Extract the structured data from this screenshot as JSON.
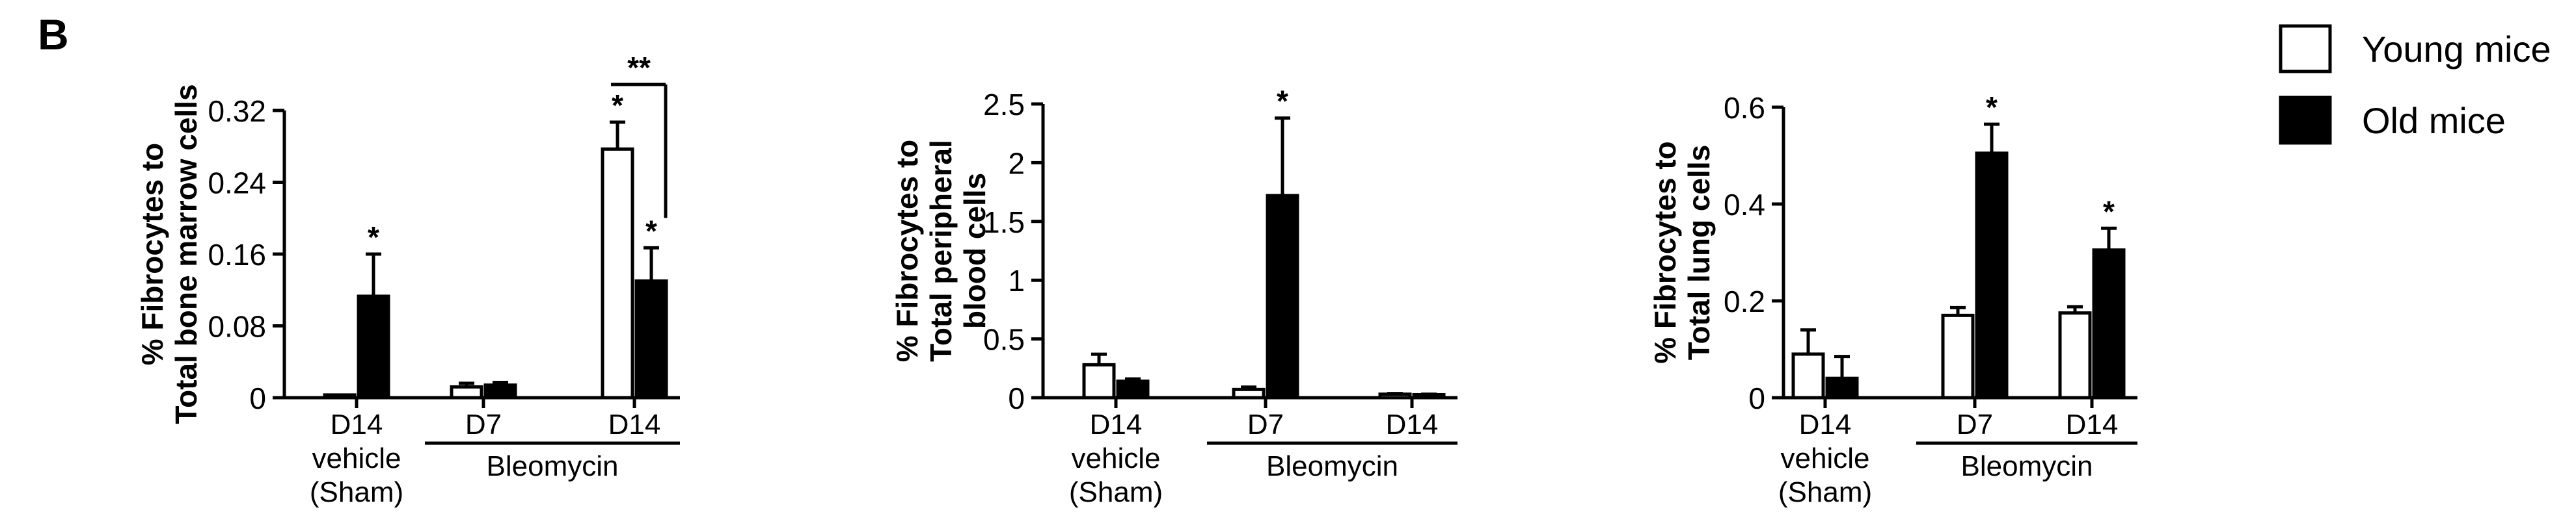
{
  "panel_label": "B",
  "legend": {
    "items": [
      {
        "label": "Young mice",
        "fill": "#ffffff"
      },
      {
        "label": "Old mice",
        "fill": "#000000"
      }
    ]
  },
  "colors": {
    "young": "#ffffff",
    "old": "#000000",
    "stroke": "#000000"
  },
  "chart_data": [
    {
      "type": "bar",
      "ylabel_lines": [
        "% Fibrocytes to",
        "Total bone marrow cells"
      ],
      "ylim": [
        0,
        0.32
      ],
      "yticks": [
        "0",
        "0.08",
        "0.16",
        "0.24",
        "0.32"
      ],
      "groups": [
        {
          "label_lines": [
            "D14",
            "vehicle",
            "(Sham)"
          ],
          "young": 0.003,
          "young_err": 0.0,
          "old": 0.113,
          "old_err": 0.047,
          "young_sig": "",
          "old_sig": "*"
        },
        {
          "label_lines": [
            "D7"
          ],
          "young": 0.012,
          "young_err": 0.004,
          "old": 0.014,
          "old_err": 0.003,
          "young_sig": "",
          "old_sig": ""
        },
        {
          "label_lines": [
            "D14"
          ],
          "young": 0.277,
          "young_err": 0.03,
          "old": 0.13,
          "old_err": 0.037,
          "young_sig": "*",
          "old_sig": "*"
        }
      ],
      "treatment_label": "Bleomycin",
      "bracket": {
        "label": "**"
      }
    },
    {
      "type": "bar",
      "ylabel_lines": [
        "% Fibrocytes to",
        "Total peripheral",
        "blood cells"
      ],
      "ylim": [
        0,
        2.5
      ],
      "yticks": [
        "0",
        "0.5",
        "1",
        "1.5",
        "2",
        "2.5"
      ],
      "groups": [
        {
          "label_lines": [
            "D14",
            "vehicle",
            "(Sham)"
          ],
          "young": 0.28,
          "young_err": 0.09,
          "old": 0.14,
          "old_err": 0.02,
          "young_sig": "",
          "old_sig": ""
        },
        {
          "label_lines": [
            "D7"
          ],
          "young": 0.07,
          "young_err": 0.02,
          "old": 1.72,
          "old_err": 0.66,
          "young_sig": "",
          "old_sig": "*"
        },
        {
          "label_lines": [
            "D14"
          ],
          "young": 0.03,
          "young_err": 0.005,
          "old": 0.025,
          "old_err": 0.005,
          "young_sig": "",
          "old_sig": ""
        }
      ],
      "treatment_label": "Bleomycin"
    },
    {
      "type": "bar",
      "ylabel_lines": [
        "% Fibrocytes to",
        "Total lung cells"
      ],
      "ylim": [
        0,
        0.6
      ],
      "yticks": [
        "0",
        "0.2",
        "0.4",
        "0.6"
      ],
      "groups": [
        {
          "label_lines": [
            "D14",
            "vehicle",
            "(Sham)"
          ],
          "young": 0.09,
          "young_err": 0.05,
          "old": 0.04,
          "old_err": 0.045,
          "young_sig": "",
          "old_sig": ""
        },
        {
          "label_lines": [
            "D7"
          ],
          "young": 0.17,
          "young_err": 0.016,
          "old": 0.505,
          "old_err": 0.06,
          "young_sig": "",
          "old_sig": "*"
        },
        {
          "label_lines": [
            "D14"
          ],
          "young": 0.175,
          "young_err": 0.013,
          "old": 0.305,
          "old_err": 0.045,
          "young_sig": "",
          "old_sig": "*"
        }
      ],
      "treatment_label": "Bleomycin"
    }
  ]
}
